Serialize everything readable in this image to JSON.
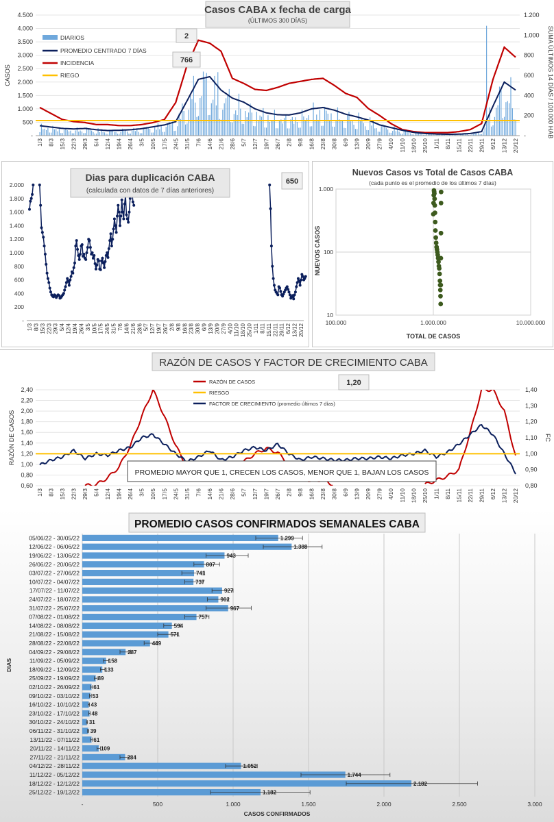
{
  "colors": {
    "diarios": "#6fa8dc",
    "promedio": "#0b1f5c",
    "incidencia": "#c00000",
    "riesgo": "#ffc000",
    "razon": "#c00000",
    "factor": "#0b1f5c",
    "scatter": "#3d5a1e",
    "bars": "#5b9bd5"
  },
  "chart_data": [
    {
      "id": "casos",
      "type": "bar+line",
      "title": "Casos  CABA  x fecha  de carga",
      "subtitle": "(ÚLTIMOS 300 DÍAS)",
      "ylabel": "CASOS",
      "y2label": "SUMA ÚLTIMOS 14 DÍAS / 100.000 HAB",
      "yticks": [
        "-",
        "500",
        "1.000",
        "1.500",
        "2.000",
        "2.500",
        "3.000",
        "3.500",
        "4.000",
        "4.500"
      ],
      "y2ticks": [
        "-",
        "200",
        "400",
        "600",
        "800",
        "1.000",
        "1.200"
      ],
      "ylim": [
        0,
        4500
      ],
      "y2lim": [
        0,
        1200
      ],
      "xticks": [
        "1/3",
        "8/3",
        "15/3",
        "22/3",
        "29/3",
        "5/4",
        "12/4",
        "19/4",
        "26/4",
        "3/5",
        "10/5",
        "17/5",
        "24/5",
        "31/5",
        "7/6",
        "14/6",
        "21/6",
        "28/6",
        "5/7",
        "12/7",
        "19/7",
        "26/7",
        "2/8",
        "9/8",
        "16/8",
        "23/8",
        "30/8",
        "6/9",
        "13/9",
        "20/9",
        "27/9",
        "4/10",
        "11/10",
        "18/10",
        "25/10",
        "1/11",
        "8/11",
        "15/11",
        "22/11",
        "29/11",
        "6/12",
        "13/12",
        "20/12"
      ],
      "legend": [
        "DIARIOS",
        "PROMEDIO CENTRADO 7 DÍAS",
        "INCIDENCIA",
        "RIEGO"
      ],
      "riesgo_value": 150,
      "promedio_week_values": [
        370,
        320,
        270,
        250,
        270,
        220,
        190,
        200,
        220,
        260,
        330,
        400,
        520,
        1300,
        2100,
        2200,
        1700,
        1400,
        1250,
        1000,
        850,
        780,
        770,
        850,
        1000,
        1050,
        950,
        800,
        700,
        580,
        400,
        300,
        200,
        120,
        80,
        60,
        50,
        55,
        80,
        150,
        1100,
        2000,
        1700
      ],
      "incidencia_week_values": [
        280,
        220,
        160,
        140,
        130,
        110,
        110,
        100,
        100,
        110,
        130,
        160,
        330,
        700,
        950,
        920,
        840,
        570,
        520,
        460,
        450,
        480,
        520,
        540,
        560,
        570,
        500,
        420,
        380,
        270,
        200,
        120,
        60,
        40,
        30,
        30,
        30,
        40,
        60,
        120,
        560,
        880,
        780
      ],
      "callouts": [
        "2",
        "766"
      ]
    },
    {
      "id": "duplicacion",
      "type": "line",
      "title": "Dias para duplicación CABA",
      "subtitle": "(calculada con datos de 7 días anteriores)",
      "yticks": [
        "-",
        "200",
        "400",
        "600",
        "800",
        "1.000",
        "1.200",
        "1.400",
        "1.600",
        "1.800",
        "2.000"
      ],
      "ylim": [
        0,
        2000
      ],
      "xticks": [
        "1/3",
        "8/3",
        "15/3",
        "22/3",
        "29/3",
        "5/4",
        "12/4",
        "19/4",
        "26/4",
        "3/5",
        "10/5",
        "17/5",
        "24/5",
        "31/5",
        "7/6",
        "14/6",
        "21/6",
        "28/6",
        "5/7",
        "12/7",
        "19/7",
        "26/7",
        "2/8",
        "9/8",
        "16/8",
        "23/8",
        "30/8",
        "6/9",
        "13/9",
        "20/9",
        "27/9",
        "4/10",
        "11/10",
        "18/10",
        "25/10",
        "1/11",
        "8/11",
        "15/11",
        "22/11",
        "29/11",
        "6/12",
        "13/12",
        "20/12"
      ],
      "callout": "650",
      "segments": [
        {
          "x": [
            0,
            1,
            2,
            3,
            4
          ],
          "y": [
            1640,
            1760,
            1800,
            1860,
            2000
          ]
        },
        {
          "x": [
            11,
            12,
            13,
            14,
            15,
            16,
            17,
            18,
            19,
            20,
            21,
            22,
            23,
            24,
            25,
            26,
            27,
            28,
            29,
            30,
            31,
            32,
            33,
            34,
            35,
            36,
            37,
            38,
            39,
            40,
            41,
            42,
            43,
            44,
            45,
            46,
            47,
            48,
            49,
            50,
            51,
            52,
            53,
            54,
            55,
            56,
            57,
            58,
            59,
            60,
            61,
            62,
            63,
            64,
            65,
            66,
            67,
            68,
            69,
            70,
            71,
            72,
            73,
            74,
            75,
            76,
            77,
            78,
            79,
            80,
            81,
            82,
            83,
            84,
            85,
            86,
            87,
            88,
            89,
            90,
            91,
            92,
            93,
            94,
            95,
            96,
            97,
            98,
            99,
            100,
            101,
            102,
            103,
            104,
            105,
            106,
            107,
            108,
            109,
            110,
            111,
            112,
            113
          ],
          "y": [
            2000,
            1700,
            1370,
            1300,
            1230,
            1100,
            980,
            830,
            700,
            620,
            560,
            480,
            420,
            380,
            360,
            350,
            380,
            370,
            340,
            360,
            380,
            370,
            330,
            340,
            360,
            380,
            400,
            450,
            500,
            560,
            620,
            580,
            520,
            600,
            650,
            720,
            700,
            780,
            850,
            1100,
            1180,
            1050,
            960,
            900,
            980,
            1100,
            1120,
            950,
            980,
            920,
            900,
            1000,
            1080,
            1200,
            1180,
            1080,
            980,
            1000,
            920,
            960,
            840,
            760,
            820,
            900,
            880,
            760,
            750,
            880,
            920,
            850,
            780,
            870,
            960,
            1000,
            930,
            1060,
            1180,
            1280,
            1100,
            1200,
            1350,
            1500,
            1400,
            1300,
            1540,
            1700,
            1600,
            1400,
            1540,
            1780,
            1600,
            1500,
            1720,
            1850,
            1560,
            1500,
            1450,
            1600,
            1800,
            2000,
            1900,
            1750,
            1700
          ]
        },
        {
          "x": [
            260,
            261,
            262,
            263,
            264,
            265,
            266,
            267,
            268,
            269,
            270,
            271,
            272,
            273,
            274,
            275,
            276,
            277,
            278,
            279,
            280,
            281,
            282,
            283,
            284,
            285,
            286,
            287,
            288,
            289,
            290,
            291,
            292,
            293,
            294,
            295,
            296,
            297,
            298,
            299
          ],
          "y": [
            2000,
            1650,
            1100,
            800,
            620,
            520,
            450,
            420,
            400,
            380,
            500,
            480,
            430,
            380,
            360,
            390,
            420,
            450,
            480,
            500,
            460,
            420,
            380,
            330,
            350,
            370,
            320,
            380,
            420,
            500,
            560,
            620,
            580,
            520,
            600,
            680,
            650,
            600,
            620,
            650
          ]
        }
      ]
    },
    {
      "id": "nuevos_vs_total",
      "type": "scatter",
      "title": "Nuevos Casos vs Total de Casos CABA",
      "subtitle": "(cada punto es el promedio de los últimos 7 días)",
      "xlabel": "TOTAL DE CASOS",
      "ylabel": "NUEVOS CASOS",
      "xscale": "log",
      "yscale": "log",
      "xticks": [
        "100.000",
        "1.000.000",
        "10.000.000"
      ],
      "yticks": [
        "10",
        "100",
        "1.000"
      ],
      "xlim": [
        100000,
        10000000
      ],
      "ylim": [
        10,
        1000
      ],
      "points_x": [
        1000000,
        1005000,
        1010000,
        1015000,
        1020000,
        1025000,
        1030000,
        1035000,
        1040000,
        1045000,
        1050000,
        1060000,
        1070000,
        1080000,
        1090000,
        1100000,
        1110000,
        1120000,
        1130000,
        1140000,
        1150000,
        1160000,
        1170000,
        1175000,
        1180000,
        1185000,
        1190000,
        1192000,
        1195000,
        1198000,
        1200000,
        1202000
      ],
      "points_y": [
        400,
        600,
        800,
        950,
        900,
        850,
        700,
        550,
        420,
        300,
        220,
        170,
        140,
        120,
        110,
        100,
        90,
        80,
        70,
        60,
        55,
        45,
        35,
        30,
        25,
        20,
        15,
        30,
        80,
        200,
        600,
        900
      ]
    },
    {
      "id": "razon",
      "type": "line",
      "title": "RAZÓN DE CASOS Y FACTOR DE CRECIMIENTO CABA",
      "ylabel": "RAZÓN DE CASOS",
      "y2label": "FC",
      "yticks": [
        "0,60",
        "0,80",
        "1,00",
        "1,20",
        "1,40",
        "1,60",
        "1,80",
        "2,00",
        "2,20",
        "2,40"
      ],
      "y2ticks": [
        "0,80",
        "0,90",
        "1,00",
        "1,10",
        "1,20",
        "1,30",
        "1,40"
      ],
      "ylim": [
        0.6,
        2.4
      ],
      "y2lim": [
        0.8,
        1.4
      ],
      "xticks": [
        "1/3",
        "8/3",
        "15/3",
        "22/3",
        "29/3",
        "5/4",
        "12/4",
        "19/4",
        "26/4",
        "3/5",
        "10/5",
        "17/5",
        "24/5",
        "31/5",
        "7/6",
        "14/6",
        "21/6",
        "28/6",
        "5/7",
        "12/7",
        "19/7",
        "26/7",
        "2/8",
        "9/8",
        "16/8",
        "23/8",
        "30/8",
        "6/9",
        "13/9",
        "20/9",
        "27/9",
        "4/10",
        "11/10",
        "18/10",
        "25/10",
        "1/11",
        "8/11",
        "15/11",
        "22/11",
        "29/11",
        "6/12",
        "13/12",
        "20/12"
      ],
      "legend": [
        "RAZÓN DE CASOS",
        "RIESGO",
        "FACTOR DE CRECIMIENTO (promedio últimos 7 días)"
      ],
      "riesgo_value": 1.2,
      "callout": "1,20",
      "annotation": "PROMEDIO MAYOR QUE 1, CRECEN LOS CASOS, MENOR QUE 1, BAJAN LOS CASOS",
      "razon_week_values": [
        null,
        null,
        null,
        null,
        0.6,
        0.62,
        0.75,
        0.95,
        1.35,
        1.9,
        2.4,
        1.9,
        1.35,
        0.95,
        0.8,
        0.72,
        0.8,
        0.95,
        1.05,
        1.2,
        1.3,
        1.22,
        1.0,
        0.78,
        0.68,
        0.72,
        0.6,
        null,
        null,
        null,
        null,
        null,
        null,
        null,
        0.62,
        0.7,
        0.78,
        0.9,
        1.6,
        2.4,
        2.4,
        2.0,
        1.15
      ],
      "factor_week_values": [
        0.93,
        0.96,
        0.98,
        1.02,
        0.97,
        1.0,
        0.99,
        1.02,
        1.04,
        1.1,
        1.12,
        1.06,
        1.0,
        0.95,
        0.98,
        1.02,
        0.96,
        0.98,
        1.02,
        1.04,
        1.02,
        1.06,
        1.0,
        0.96,
        0.98,
        0.97,
        0.96,
        0.96,
        0.97,
        0.97,
        0.98,
        0.97,
        0.99,
        1.0,
        1.02,
        0.98,
        1.01,
        1.06,
        1.12,
        1.18,
        1.12,
        1.0,
        0.88
      ]
    },
    {
      "id": "semanales",
      "type": "bar",
      "orientation": "horizontal",
      "title": "PROMEDIO CASOS CONFIRMADOS SEMANALES CABA",
      "xlabel": "CASOS CONFIRMADOS",
      "ylabel": "DIAS",
      "xlim": [
        0,
        3000
      ],
      "xticks": [
        "-",
        "500",
        "1.000",
        "1.500",
        "2.000",
        "2.500",
        "3.000"
      ],
      "categories": [
        "05/06/22 - 30/05/22",
        "12/06/22 - 06/06/22",
        "19/06/22 - 13/06/22",
        "26/06/22 - 20/06/22",
        "03/07/22 - 27/06/22",
        "10/07/22 - 04/07/22",
        "17/07/22 - 11/07/22",
        "24/07/22 - 18/07/22",
        "31/07/22 - 25/07/22",
        "07/08/22 - 01/08/22",
        "14/08/22 - 08/08/22",
        "21/08/22 - 15/08/22",
        "28/08/22 - 22/08/22",
        "04/09/22 - 29/08/22",
        "11/09/22 - 05/09/22",
        "18/09/22 - 12/09/22",
        "25/09/22 - 19/09/22",
        "02/10/22 - 26/09/22",
        "09/10/22 - 03/10/22",
        "16/10/22 - 10/10/22",
        "23/10/22 - 17/10/22",
        "30/10/22 - 24/10/22",
        "06/11/22 - 31/10/22",
        "13/11/22 - 07/11/22",
        "20/11/22 - 14/11/22",
        "27/11/22 - 21/11/22",
        "04/12/22 - 28/11/22",
        "11/12/22 - 05/12/22",
        "18/12/22 - 12/12/22",
        "25/12/22 - 19/12/22"
      ],
      "values": [
        1299,
        1388,
        943,
        807,
        741,
        737,
        927,
        902,
        967,
        757,
        594,
        571,
        449,
        287,
        158,
        133,
        89,
        61,
        53,
        43,
        48,
        31,
        39,
        61,
        109,
        284,
        1052,
        1744,
        2182,
        1182
      ],
      "labels": [
        "1.299",
        "1.388",
        "943",
        "807",
        "741",
        "737",
        "927",
        "902",
        "967",
        "757",
        "594",
        "571",
        "449",
        "287",
        "158",
        "133",
        "89",
        "61",
        "53",
        "43",
        "48",
        "31",
        "39",
        "61",
        "109",
        "284",
        "1.052",
        "1.744",
        "2.182",
        "1.182"
      ],
      "err_low": [
        1150,
        1200,
        820,
        740,
        660,
        680,
        860,
        830,
        820,
        680,
        540,
        500,
        410,
        250,
        140,
        120,
        80,
        55,
        48,
        40,
        43,
        28,
        35,
        55,
        98,
        250,
        950,
        1450,
        1750,
        850
      ],
      "err_high": [
        1460,
        1590,
        1100,
        910,
        810,
        800,
        1000,
        970,
        1120,
        840,
        650,
        630,
        490,
        320,
        175,
        150,
        100,
        70,
        60,
        48,
        53,
        35,
        43,
        68,
        120,
        310,
        1160,
        2040,
        2620,
        1510
      ]
    }
  ]
}
